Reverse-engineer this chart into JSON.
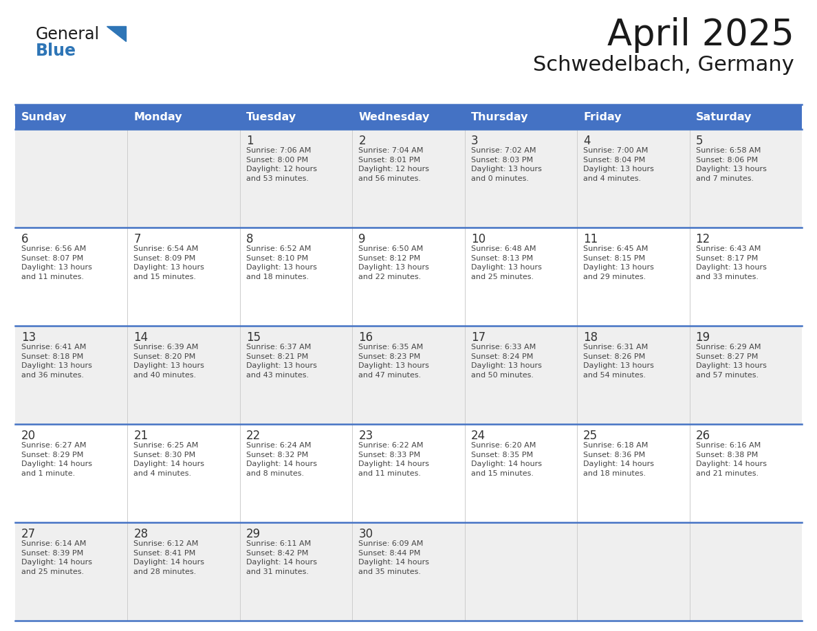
{
  "title": "April 2025",
  "subtitle": "Schwedelbach, Germany",
  "days_of_week": [
    "Sunday",
    "Monday",
    "Tuesday",
    "Wednesday",
    "Thursday",
    "Friday",
    "Saturday"
  ],
  "header_bg": "#4472C4",
  "header_text": "#FFFFFF",
  "row_bg_light": "#EFEFEF",
  "row_bg_white": "#FFFFFF",
  "cell_border_color": "#4472C4",
  "day_number_color": "#333333",
  "cell_text_color": "#444444",
  "title_color": "#1a1a1a",
  "subtitle_color": "#1a1a1a",
  "generalblue_black": "#1a1a1a",
  "generalblue_blue": "#2E75B6",
  "triangle_color": "#2E75B6",
  "calendar_data": [
    [
      {
        "day": "",
        "info": ""
      },
      {
        "day": "",
        "info": ""
      },
      {
        "day": "1",
        "info": "Sunrise: 7:06 AM\nSunset: 8:00 PM\nDaylight: 12 hours\nand 53 minutes."
      },
      {
        "day": "2",
        "info": "Sunrise: 7:04 AM\nSunset: 8:01 PM\nDaylight: 12 hours\nand 56 minutes."
      },
      {
        "day": "3",
        "info": "Sunrise: 7:02 AM\nSunset: 8:03 PM\nDaylight: 13 hours\nand 0 minutes."
      },
      {
        "day": "4",
        "info": "Sunrise: 7:00 AM\nSunset: 8:04 PM\nDaylight: 13 hours\nand 4 minutes."
      },
      {
        "day": "5",
        "info": "Sunrise: 6:58 AM\nSunset: 8:06 PM\nDaylight: 13 hours\nand 7 minutes."
      }
    ],
    [
      {
        "day": "6",
        "info": "Sunrise: 6:56 AM\nSunset: 8:07 PM\nDaylight: 13 hours\nand 11 minutes."
      },
      {
        "day": "7",
        "info": "Sunrise: 6:54 AM\nSunset: 8:09 PM\nDaylight: 13 hours\nand 15 minutes."
      },
      {
        "day": "8",
        "info": "Sunrise: 6:52 AM\nSunset: 8:10 PM\nDaylight: 13 hours\nand 18 minutes."
      },
      {
        "day": "9",
        "info": "Sunrise: 6:50 AM\nSunset: 8:12 PM\nDaylight: 13 hours\nand 22 minutes."
      },
      {
        "day": "10",
        "info": "Sunrise: 6:48 AM\nSunset: 8:13 PM\nDaylight: 13 hours\nand 25 minutes."
      },
      {
        "day": "11",
        "info": "Sunrise: 6:45 AM\nSunset: 8:15 PM\nDaylight: 13 hours\nand 29 minutes."
      },
      {
        "day": "12",
        "info": "Sunrise: 6:43 AM\nSunset: 8:17 PM\nDaylight: 13 hours\nand 33 minutes."
      }
    ],
    [
      {
        "day": "13",
        "info": "Sunrise: 6:41 AM\nSunset: 8:18 PM\nDaylight: 13 hours\nand 36 minutes."
      },
      {
        "day": "14",
        "info": "Sunrise: 6:39 AM\nSunset: 8:20 PM\nDaylight: 13 hours\nand 40 minutes."
      },
      {
        "day": "15",
        "info": "Sunrise: 6:37 AM\nSunset: 8:21 PM\nDaylight: 13 hours\nand 43 minutes."
      },
      {
        "day": "16",
        "info": "Sunrise: 6:35 AM\nSunset: 8:23 PM\nDaylight: 13 hours\nand 47 minutes."
      },
      {
        "day": "17",
        "info": "Sunrise: 6:33 AM\nSunset: 8:24 PM\nDaylight: 13 hours\nand 50 minutes."
      },
      {
        "day": "18",
        "info": "Sunrise: 6:31 AM\nSunset: 8:26 PM\nDaylight: 13 hours\nand 54 minutes."
      },
      {
        "day": "19",
        "info": "Sunrise: 6:29 AM\nSunset: 8:27 PM\nDaylight: 13 hours\nand 57 minutes."
      }
    ],
    [
      {
        "day": "20",
        "info": "Sunrise: 6:27 AM\nSunset: 8:29 PM\nDaylight: 14 hours\nand 1 minute."
      },
      {
        "day": "21",
        "info": "Sunrise: 6:25 AM\nSunset: 8:30 PM\nDaylight: 14 hours\nand 4 minutes."
      },
      {
        "day": "22",
        "info": "Sunrise: 6:24 AM\nSunset: 8:32 PM\nDaylight: 14 hours\nand 8 minutes."
      },
      {
        "day": "23",
        "info": "Sunrise: 6:22 AM\nSunset: 8:33 PM\nDaylight: 14 hours\nand 11 minutes."
      },
      {
        "day": "24",
        "info": "Sunrise: 6:20 AM\nSunset: 8:35 PM\nDaylight: 14 hours\nand 15 minutes."
      },
      {
        "day": "25",
        "info": "Sunrise: 6:18 AM\nSunset: 8:36 PM\nDaylight: 14 hours\nand 18 minutes."
      },
      {
        "day": "26",
        "info": "Sunrise: 6:16 AM\nSunset: 8:38 PM\nDaylight: 14 hours\nand 21 minutes."
      }
    ],
    [
      {
        "day": "27",
        "info": "Sunrise: 6:14 AM\nSunset: 8:39 PM\nDaylight: 14 hours\nand 25 minutes."
      },
      {
        "day": "28",
        "info": "Sunrise: 6:12 AM\nSunset: 8:41 PM\nDaylight: 14 hours\nand 28 minutes."
      },
      {
        "day": "29",
        "info": "Sunrise: 6:11 AM\nSunset: 8:42 PM\nDaylight: 14 hours\nand 31 minutes."
      },
      {
        "day": "30",
        "info": "Sunrise: 6:09 AM\nSunset: 8:44 PM\nDaylight: 14 hours\nand 35 minutes."
      },
      {
        "day": "",
        "info": ""
      },
      {
        "day": "",
        "info": ""
      },
      {
        "day": "",
        "info": ""
      }
    ]
  ]
}
